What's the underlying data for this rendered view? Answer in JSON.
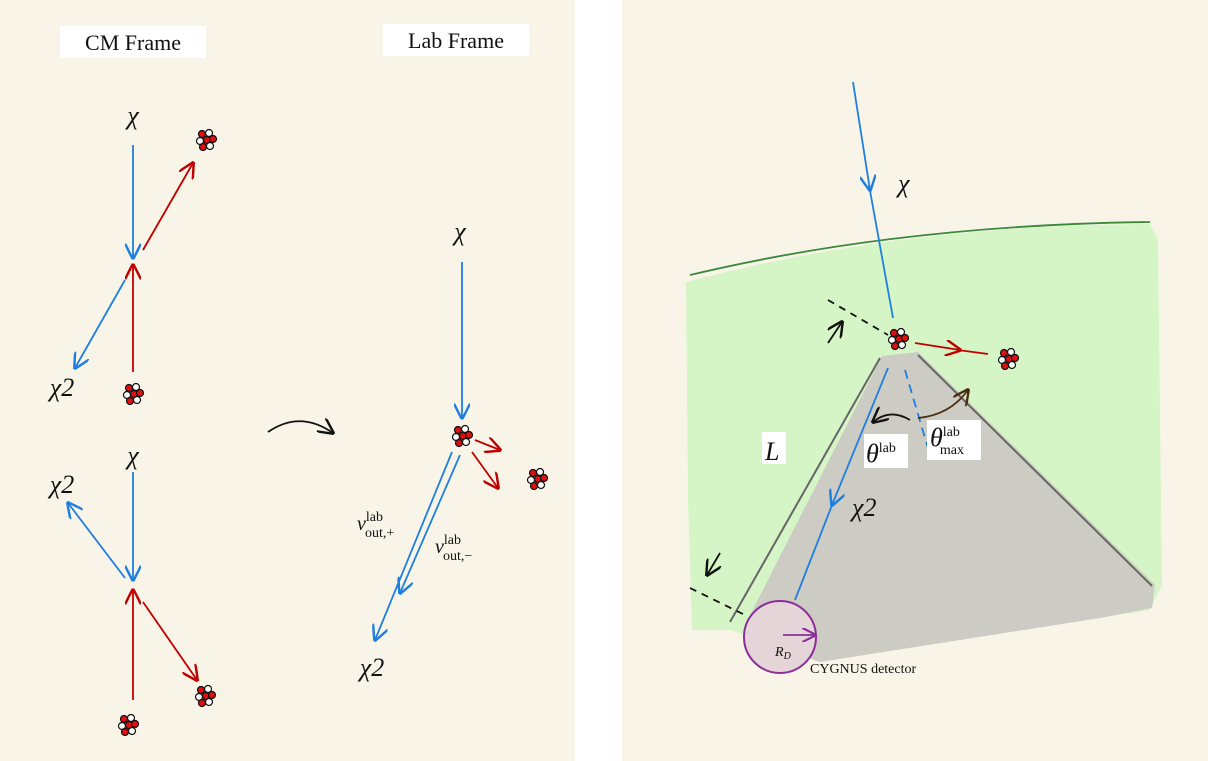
{
  "left_panel": {
    "cm_frame": {
      "title": "CM Frame",
      "top": {
        "incoming": "χ",
        "outgoing": "χ2"
      },
      "bottom": {
        "incoming": "χ",
        "outgoing": "χ2"
      }
    },
    "lab_frame": {
      "title": "Lab Frame",
      "incoming": "χ",
      "outgoing": "χ2",
      "velocity_plus": {
        "base": "v",
        "sup": "lab",
        "sub": "out,+"
      },
      "velocity_minus": {
        "base": "v",
        "sup": "lab",
        "sub": "out,−"
      }
    }
  },
  "right_panel": {
    "incoming": "χ",
    "outgoing": "χ2",
    "distance": "L",
    "theta": {
      "base": "θ",
      "sup": "lab"
    },
    "theta_max": {
      "base": "θ",
      "sup": "lab",
      "sub": "max"
    },
    "detector_radius": {
      "base": "R",
      "sub": "D"
    },
    "detector": "CYGNUS detector"
  }
}
